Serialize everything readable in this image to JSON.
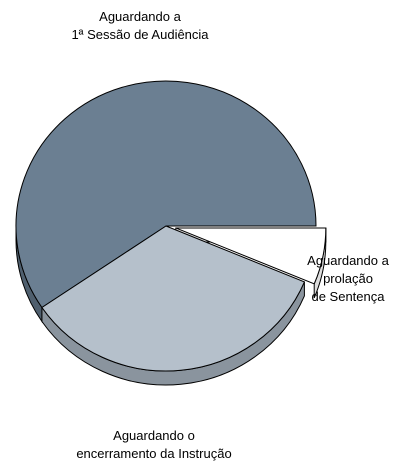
{
  "chart_data": {
    "type": "pie",
    "style": "3d-exploded",
    "slices": [
      {
        "label": "Aguardando a 1ª Sessão de Audiência",
        "label_lines": [
          "Aguardando a",
          "1ª Sessão de Audiência"
        ],
        "value": 59.5,
        "color": "#6b7f92",
        "side_color": "#4f5f6e"
      },
      {
        "label": "Aguardando o encerramento da Instrução",
        "label_lines": [
          "Aguardando o",
          "encerramento da Instrução"
        ],
        "value": 34.2,
        "color": "#b5c0cb",
        "side_color": "#8a949e"
      },
      {
        "label": "Aguardando a prolação de Sentença",
        "label_lines": [
          "Aguardando a",
          "prolação",
          "de Sentença"
        ],
        "value": 6.3,
        "color": "#ffffff",
        "side_color": "#dddddd"
      }
    ],
    "outline_color": "#000000",
    "legend": "none"
  }
}
